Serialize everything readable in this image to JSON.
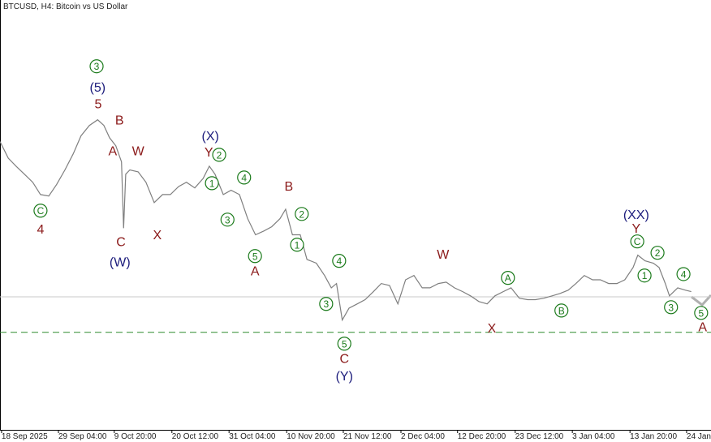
{
  "chart_data": {
    "type": "line",
    "title": "BTCUSD, H4:  Bitcoin vs US Dollar",
    "xlim": [
      0,
      136.9
    ],
    "ylim": [
      60000,
      150800
    ],
    "xticks": [
      {
        "value": 0.3,
        "label": "18 Sep 2025"
      },
      {
        "value": 11.25,
        "label": "29 Sep 04:00"
      },
      {
        "value": 22,
        "label": "9 Oct 20:00"
      },
      {
        "value": 33.1,
        "label": "20 Oct 12:00"
      },
      {
        "value": 44.1,
        "label": "31 Oct 04:00"
      },
      {
        "value": 55.2,
        "label": "10 Nov 20:00"
      },
      {
        "value": 66.1,
        "label": "21 Nov 12:00"
      },
      {
        "value": 77.2,
        "label": "2 Dec 04:00"
      },
      {
        "value": 88.1,
        "label": "12 Dec 20:00"
      },
      {
        "value": 99.2,
        "label": "23 Dec 12:00"
      },
      {
        "value": 110.2,
        "label": "3 Jan 04:00"
      },
      {
        "value": 121.3,
        "label": "13 Jan 20:00"
      },
      {
        "value": 132.2,
        "label": "24 Jan"
      }
    ],
    "series": [
      {
        "color": "#7f7f7f",
        "x": [
          0,
          1.6,
          3.1,
          4.7,
          6.3,
          7.8,
          9.4,
          10.9,
          12.5,
          14.1,
          15.6,
          17.2,
          18.8,
          20,
          21.1,
          22.3,
          23.4,
          23.8,
          24.2,
          25,
          26.6,
          28.1,
          29.7,
          31.3,
          32.8,
          34.4,
          35.9,
          37.5,
          39.1,
          40.3,
          41.4,
          43,
          44.5,
          46.1,
          47.7,
          49.2,
          50.8,
          52.3,
          53.9,
          55,
          56.3,
          57.8,
          59.1,
          60.9,
          62.5,
          63.8,
          64.8,
          65.9,
          67.2,
          68.8,
          70.3,
          71.9,
          73.4,
          75,
          76.6,
          78.1,
          79.7,
          81.3,
          82.8,
          84.4,
          85.9,
          87.5,
          89.1,
          90.6,
          92.2,
          93.8,
          95.3,
          96.9,
          98.4,
          100,
          101.6,
          103.1,
          104.7,
          106.3,
          107.8,
          109.4,
          110.9,
          112.5,
          114.1,
          115.6,
          117.2,
          118.8,
          120.3,
          121.9,
          122.8,
          124.2,
          125.8,
          126.9,
          128.1,
          128.9,
          130.5,
          132,
          133.1
        ],
        "values": [
          120900,
          117400,
          115700,
          114000,
          112300,
          109700,
          109400,
          111800,
          114900,
          118300,
          122100,
          124300,
          125500,
          124300,
          121700,
          120000,
          116600,
          102600,
          114000,
          114900,
          114500,
          112300,
          108000,
          109700,
          109700,
          111400,
          112300,
          111100,
          113100,
          115700,
          114000,
          109700,
          110600,
          109700,
          104600,
          101200,
          102000,
          102900,
          104600,
          106600,
          101200,
          101200,
          96000,
          95200,
          92600,
          90000,
          90900,
          83200,
          85700,
          86600,
          87500,
          89200,
          90900,
          90500,
          86600,
          91700,
          92600,
          90000,
          90000,
          90900,
          91200,
          90000,
          89200,
          88300,
          87100,
          86600,
          88300,
          89200,
          90000,
          87800,
          87500,
          87500,
          87800,
          88300,
          88800,
          89500,
          90900,
          92600,
          91700,
          91700,
          90900,
          90900,
          91700,
          94300,
          96900,
          95700,
          95200,
          94300,
          90900,
          88300,
          90000,
          89500,
          89200
        ]
      }
    ],
    "hlines": [
      {
        "value": 88100,
        "color": "#c8c8c8",
        "dashed": false
      },
      {
        "value": 80600,
        "color": "#2e8b2e",
        "dashed": true
      }
    ],
    "annotations": [
      {
        "text": "3",
        "x": 18.6,
        "y": 136800,
        "color": "#1a7a1a",
        "circled": true
      },
      {
        "text": "(5)",
        "x": 18.8,
        "y": 132200,
        "color": "#1c1c7c",
        "circled": false
      },
      {
        "text": "5",
        "x": 18.9,
        "y": 128700,
        "color": "#8b1a1a",
        "circled": false
      },
      {
        "text": "B",
        "x": 23.0,
        "y": 125300,
        "color": "#8b1a1a",
        "circled": false
      },
      {
        "text": "A",
        "x": 21.7,
        "y": 118800,
        "color": "#8b1a1a",
        "circled": false
      },
      {
        "text": "W",
        "x": 26.6,
        "y": 118800,
        "color": "#8b1a1a",
        "circled": false
      },
      {
        "text": "C",
        "x": 7.8,
        "y": 106300,
        "color": "#1a7a1a",
        "circled": true
      },
      {
        "text": "4",
        "x": 7.8,
        "y": 102200,
        "color": "#8b1a1a",
        "circled": false
      },
      {
        "text": "C",
        "x": 23.3,
        "y": 99600,
        "color": "#8b1a1a",
        "circled": false
      },
      {
        "text": "(W)",
        "x": 23.1,
        "y": 95300,
        "color": "#1c1c7c",
        "circled": false
      },
      {
        "text": "X",
        "x": 30.3,
        "y": 101000,
        "color": "#8b1a1a",
        "circled": false
      },
      {
        "text": "(X)",
        "x": 40.5,
        "y": 121900,
        "color": "#1c1c7c",
        "circled": false
      },
      {
        "text": "Y",
        "x": 40.2,
        "y": 118500,
        "color": "#8b1a1a",
        "circled": false
      },
      {
        "text": "2",
        "x": 42.2,
        "y": 118100,
        "color": "#1a7a1a",
        "circled": true
      },
      {
        "text": "1",
        "x": 40.8,
        "y": 112100,
        "color": "#1a7a1a",
        "circled": true
      },
      {
        "text": "4",
        "x": 47.0,
        "y": 113300,
        "color": "#1a7a1a",
        "circled": true
      },
      {
        "text": "3",
        "x": 43.8,
        "y": 104400,
        "color": "#1a7a1a",
        "circled": true
      },
      {
        "text": "5",
        "x": 49.1,
        "y": 96700,
        "color": "#1a7a1a",
        "circled": true
      },
      {
        "text": "A",
        "x": 49.1,
        "y": 93400,
        "color": "#8b1a1a",
        "circled": false
      },
      {
        "text": "B",
        "x": 55.6,
        "y": 111300,
        "color": "#8b1a1a",
        "circled": false
      },
      {
        "text": "2",
        "x": 58.1,
        "y": 105600,
        "color": "#1a7a1a",
        "circled": true
      },
      {
        "text": "1",
        "x": 57.2,
        "y": 99100,
        "color": "#1a7a1a",
        "circled": true
      },
      {
        "text": "4",
        "x": 65.3,
        "y": 95700,
        "color": "#1a7a1a",
        "circled": true
      },
      {
        "text": "3",
        "x": 62.8,
        "y": 86600,
        "color": "#1a7a1a",
        "circled": true
      },
      {
        "text": "5",
        "x": 66.3,
        "y": 78200,
        "color": "#1a7a1a",
        "circled": true
      },
      {
        "text": "C",
        "x": 66.3,
        "y": 74900,
        "color": "#8b1a1a",
        "circled": false
      },
      {
        "text": "(Y)",
        "x": 66.3,
        "y": 71200,
        "color": "#1c1c7c",
        "circled": false
      },
      {
        "text": "W",
        "x": 85.3,
        "y": 96900,
        "color": "#8b1a1a",
        "circled": false
      },
      {
        "text": "A",
        "x": 97.8,
        "y": 92100,
        "color": "#1a7a1a",
        "circled": true
      },
      {
        "text": "X",
        "x": 94.7,
        "y": 81300,
        "color": "#8b1a1a",
        "circled": false
      },
      {
        "text": "B",
        "x": 108.1,
        "y": 85200,
        "color": "#1a7a1a",
        "circled": true
      },
      {
        "text": "(XX)",
        "x": 122.5,
        "y": 105300,
        "color": "#1c1c7c",
        "circled": false
      },
      {
        "text": "Y",
        "x": 122.5,
        "y": 102400,
        "color": "#8b1a1a",
        "circled": false
      },
      {
        "text": "C",
        "x": 122.7,
        "y": 99800,
        "color": "#1a7a1a",
        "circled": true
      },
      {
        "text": "2",
        "x": 126.6,
        "y": 97400,
        "color": "#1a7a1a",
        "circled": true
      },
      {
        "text": "1",
        "x": 124.1,
        "y": 92600,
        "color": "#1a7a1a",
        "circled": true
      },
      {
        "text": "4",
        "x": 131.6,
        "y": 92900,
        "color": "#1a7a1a",
        "circled": true
      },
      {
        "text": "3",
        "x": 129.2,
        "y": 85900,
        "color": "#1a7a1a",
        "circled": true
      },
      {
        "text": "5",
        "x": 135.0,
        "y": 84700,
        "color": "#1a7a1a",
        "circled": true
      },
      {
        "text": "A",
        "x": 135.3,
        "y": 81600,
        "color": "#8b1a1a",
        "circled": false
      }
    ]
  }
}
